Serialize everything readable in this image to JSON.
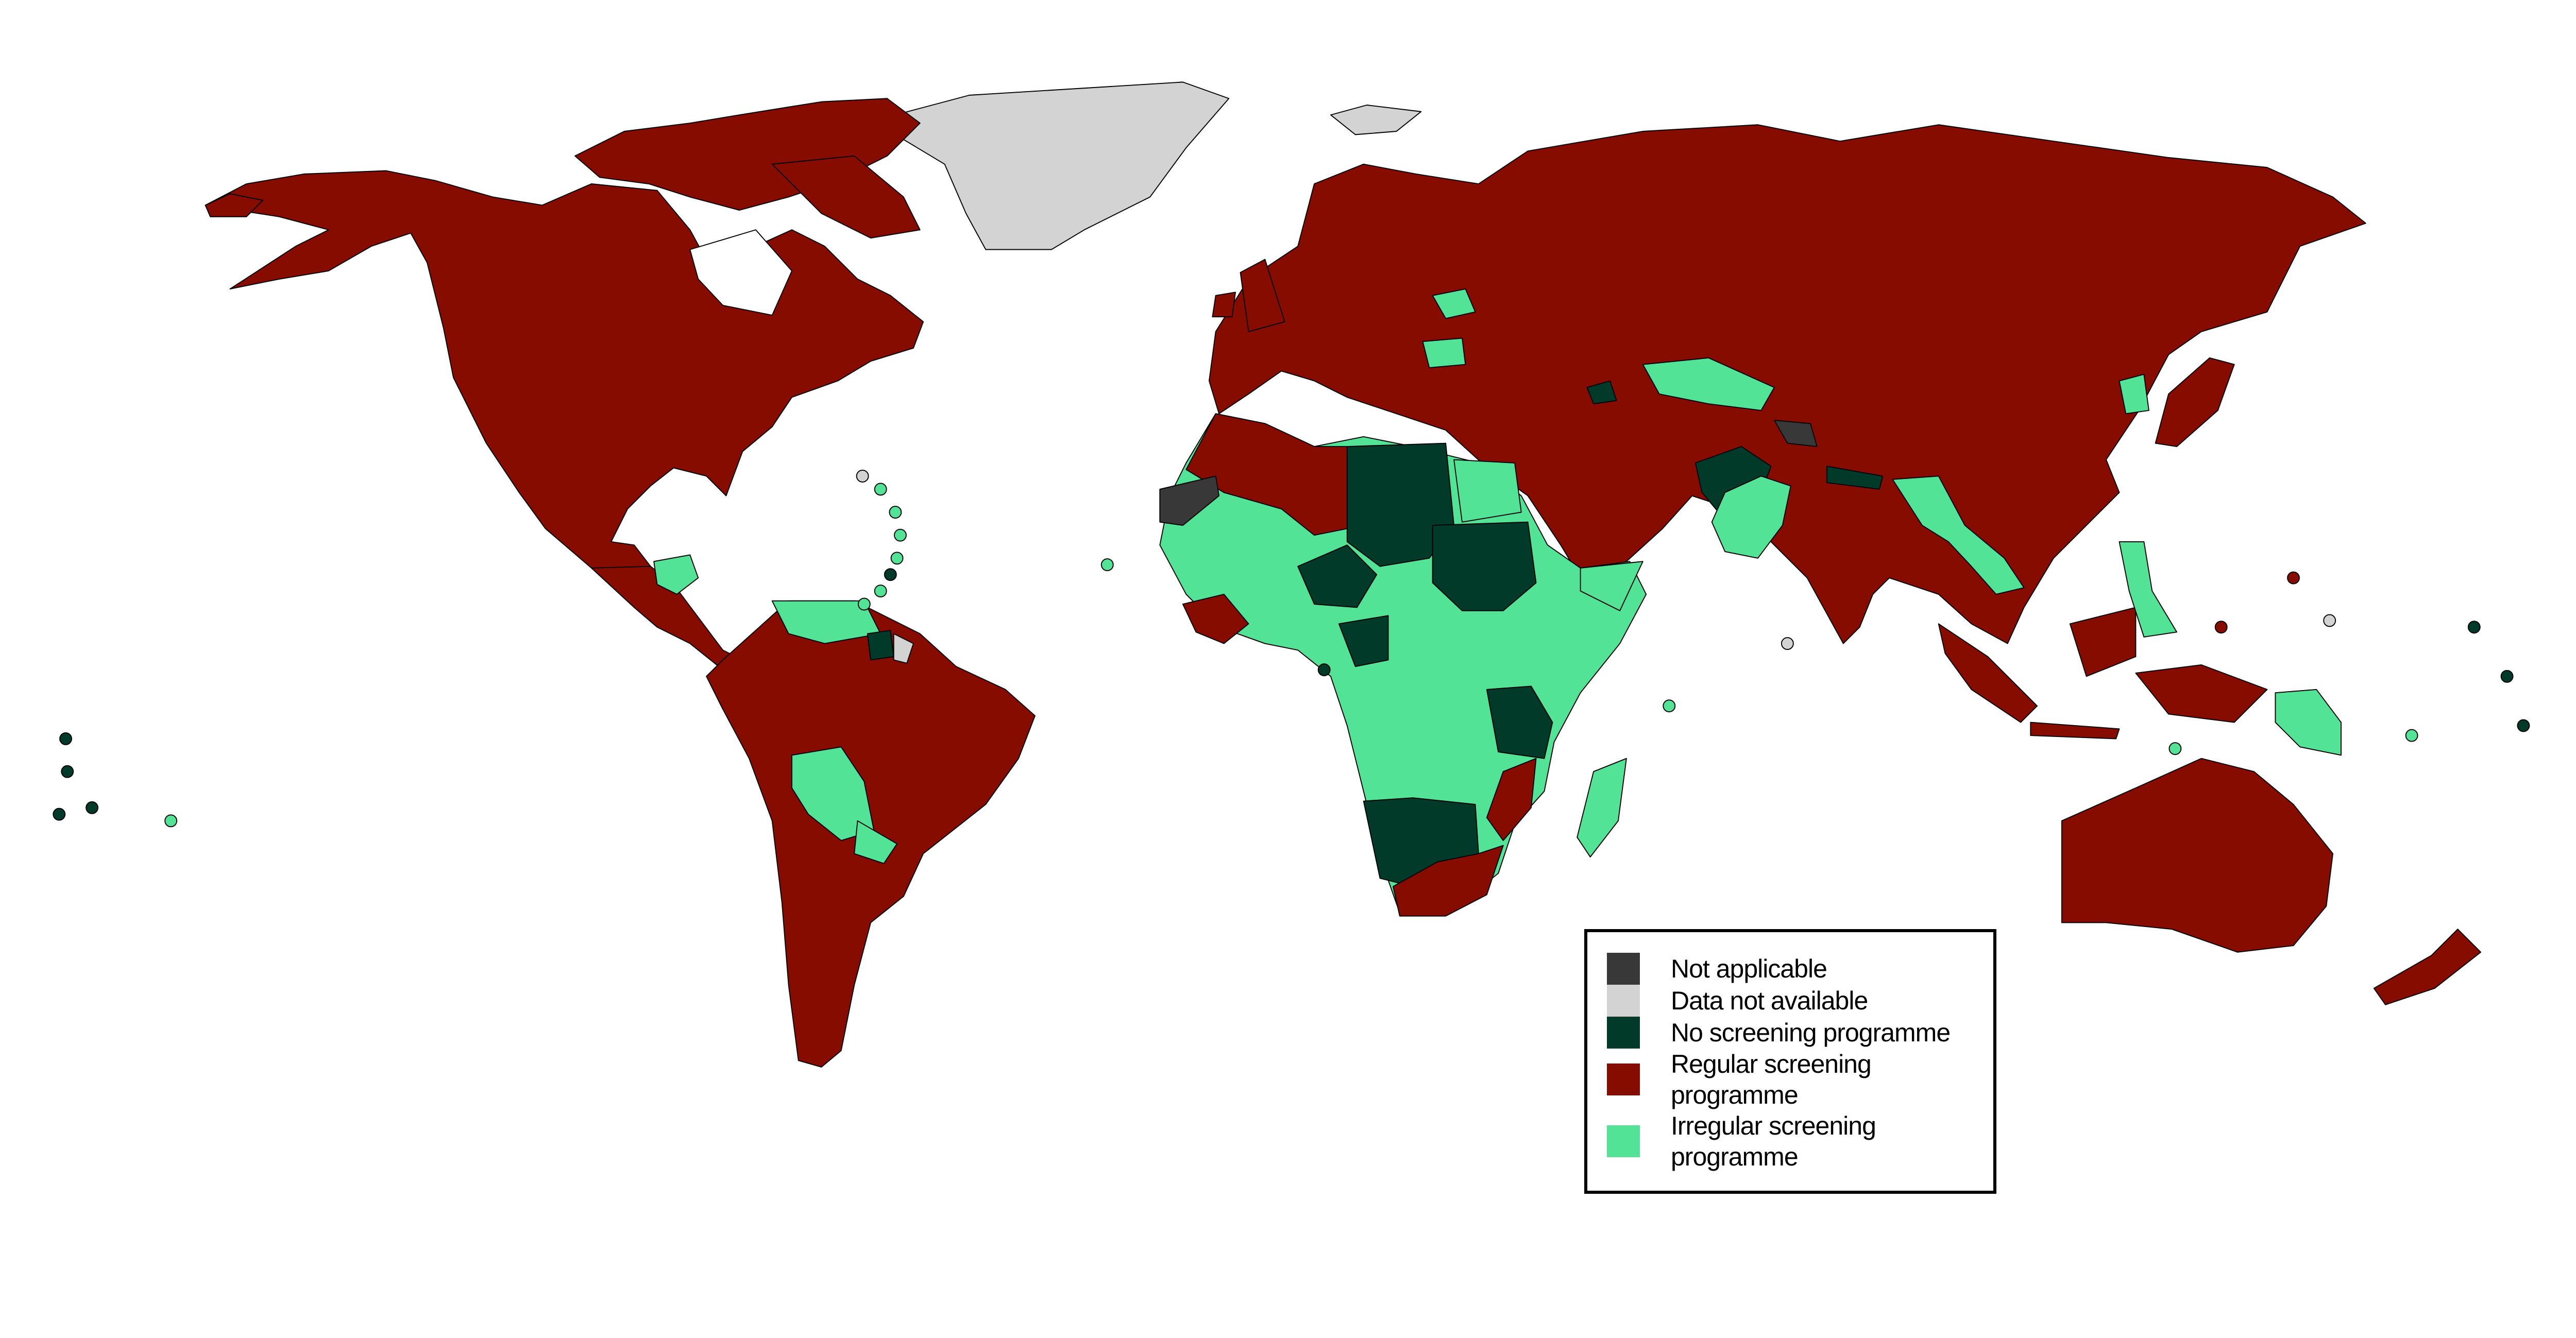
{
  "legend": {
    "items": [
      {
        "key": "na",
        "label": "Not applicable",
        "color": "#383838"
      },
      {
        "key": "nodata",
        "label": "Data not available",
        "color": "#d3d3d3"
      },
      {
        "key": "none",
        "label": "No screening programme",
        "color": "#023a2a"
      },
      {
        "key": "regular",
        "label": "Regular screening programme",
        "color": "#870c00"
      },
      {
        "key": "irregular",
        "label": "Irregular screening programme",
        "color": "#52e396"
      }
    ]
  }
}
